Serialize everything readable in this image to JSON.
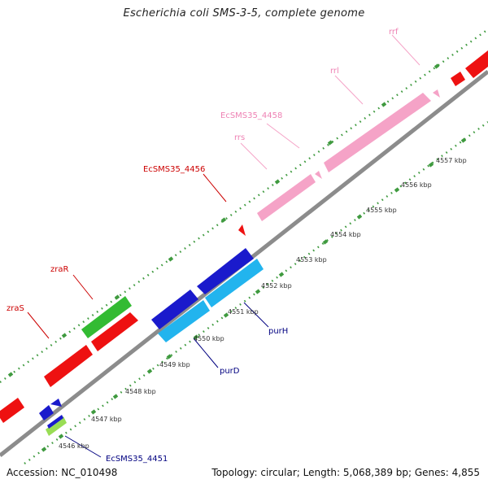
{
  "title": "Escherichia coli SMS-3-5, complete genome",
  "accession_label": "Accession: NC_010498",
  "summary_label": "Topology: circular; Length: 5,068,389 bp; Genes: 4,855",
  "colors": {
    "dna": "#8c8c8c",
    "dots": "#3f9a3f",
    "forward_gene": "#ee1111",
    "forward_gene_alt": "#33bb33",
    "rrna": "#f5a3c7",
    "reverse_gene": "#1a1acc",
    "reverse_gene_alt": "#22b4ee",
    "reverse_gene_small": "#99dd55",
    "forward_label": "#cc0000",
    "rrna_label": "#ee82b4",
    "reverse_label": "#000080"
  },
  "ticks": [
    "4546 kbp",
    "4547 kbp",
    "4548 kbp",
    "4549 kbp",
    "4550 kbp",
    "4551 kbp",
    "4552 kbp",
    "4553 kbp",
    "4554 kbp",
    "4555 kbp",
    "4556 kbp",
    "4557 kbp"
  ],
  "labels": {
    "rrf": "rrf",
    "rrl": "rrl",
    "ecsms35_4458": "EcSMS35_4458",
    "rrs": "rrs",
    "ecsms35_4456": "EcSMS35_4456",
    "zraR": "zraR",
    "zraS": "zraS",
    "purH": "purH",
    "purD": "purD",
    "ecsms35_4451": "EcSMS35_4451"
  }
}
